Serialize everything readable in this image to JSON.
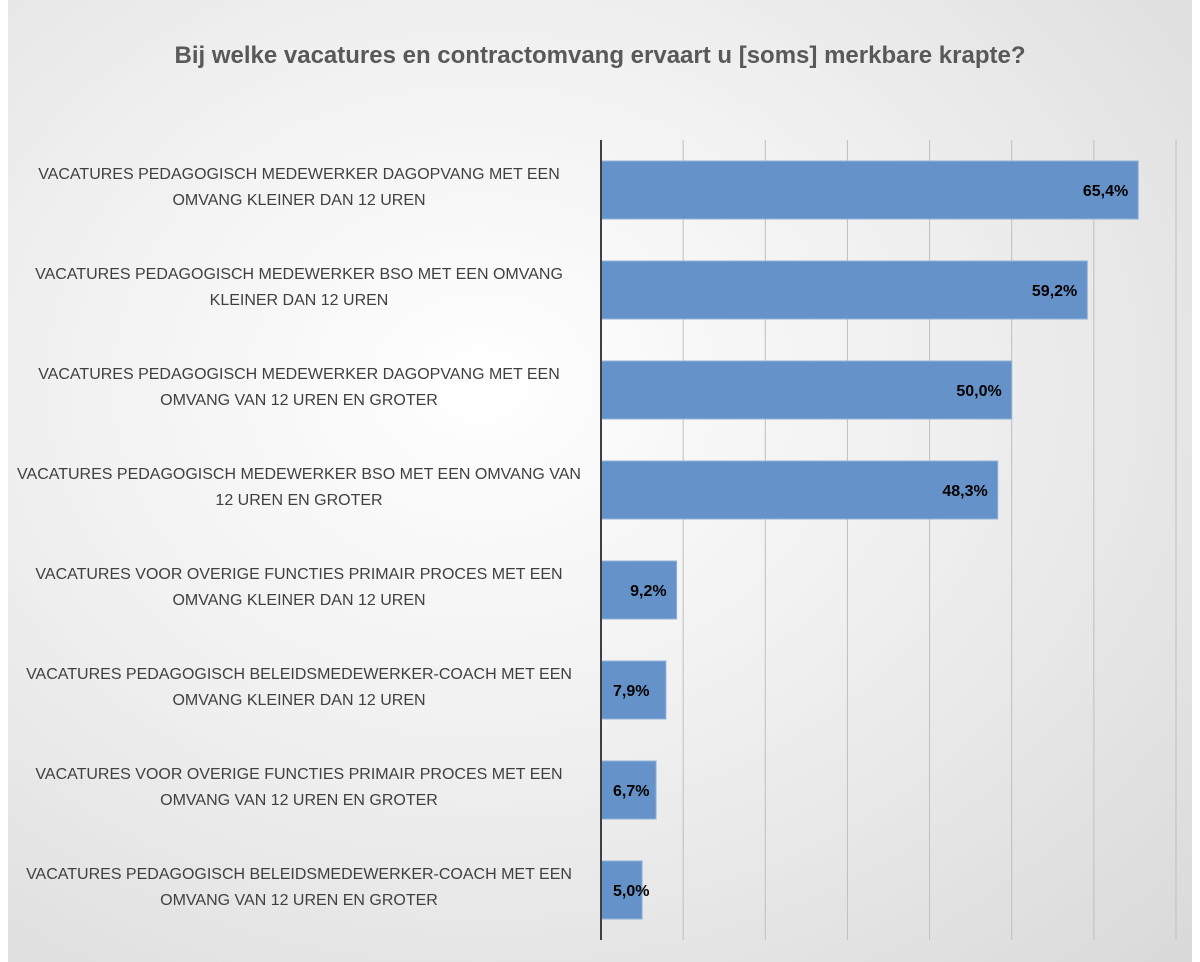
{
  "chart_data": {
    "type": "bar",
    "orientation": "horizontal",
    "title": "Bij welke vacatures en contractomvang ervaart u [soms] merkbare krapte?",
    "categories": [
      "VACATURES PEDAGOGISCH MEDEWERKER DAGOPVANG MET EEN OMVANG KLEINER DAN 12 UREN",
      "VACATURES PEDAGOGISCH MEDEWERKER BSO MET EEN OMVANG KLEINER DAN 12 UREN",
      "VACATURES PEDAGOGISCH MEDEWERKER DAGOPVANG MET EEN OMVANG VAN 12 UREN EN GROTER",
      "VACATURES PEDAGOGISCH MEDEWERKER BSO MET EEN OMVANG VAN 12 UREN EN GROTER",
      "VACATURES VOOR OVERIGE FUNCTIES PRIMAIR PROCES MET EEN OMVANG KLEINER DAN 12 UREN",
      "VACATURES PEDAGOGISCH BELEIDSMEDEWERKER-COACH MET EEN OMVANG KLEINER DAN 12 UREN",
      "VACATURES VOOR OVERIGE FUNCTIES PRIMAIR PROCES MET EEN OMVANG VAN 12 UREN EN GROTER",
      "VACATURES PEDAGOGISCH BELEIDSMEDEWERKER-COACH MET EEN OMVANG VAN 12 UREN EN GROTER"
    ],
    "values": [
      65.4,
      59.2,
      50.0,
      48.3,
      9.2,
      7.9,
      6.7,
      5.0
    ],
    "value_labels": [
      "65,4%",
      "59,2%",
      "50,0%",
      "48,3%",
      "9,2%",
      "7,9%",
      "6,7%",
      "5,0%"
    ],
    "color": "#6593c9",
    "xlim": [
      0,
      70
    ],
    "xticks": [
      0,
      10,
      20,
      30,
      40,
      50,
      60,
      70
    ],
    "grid": true
  }
}
